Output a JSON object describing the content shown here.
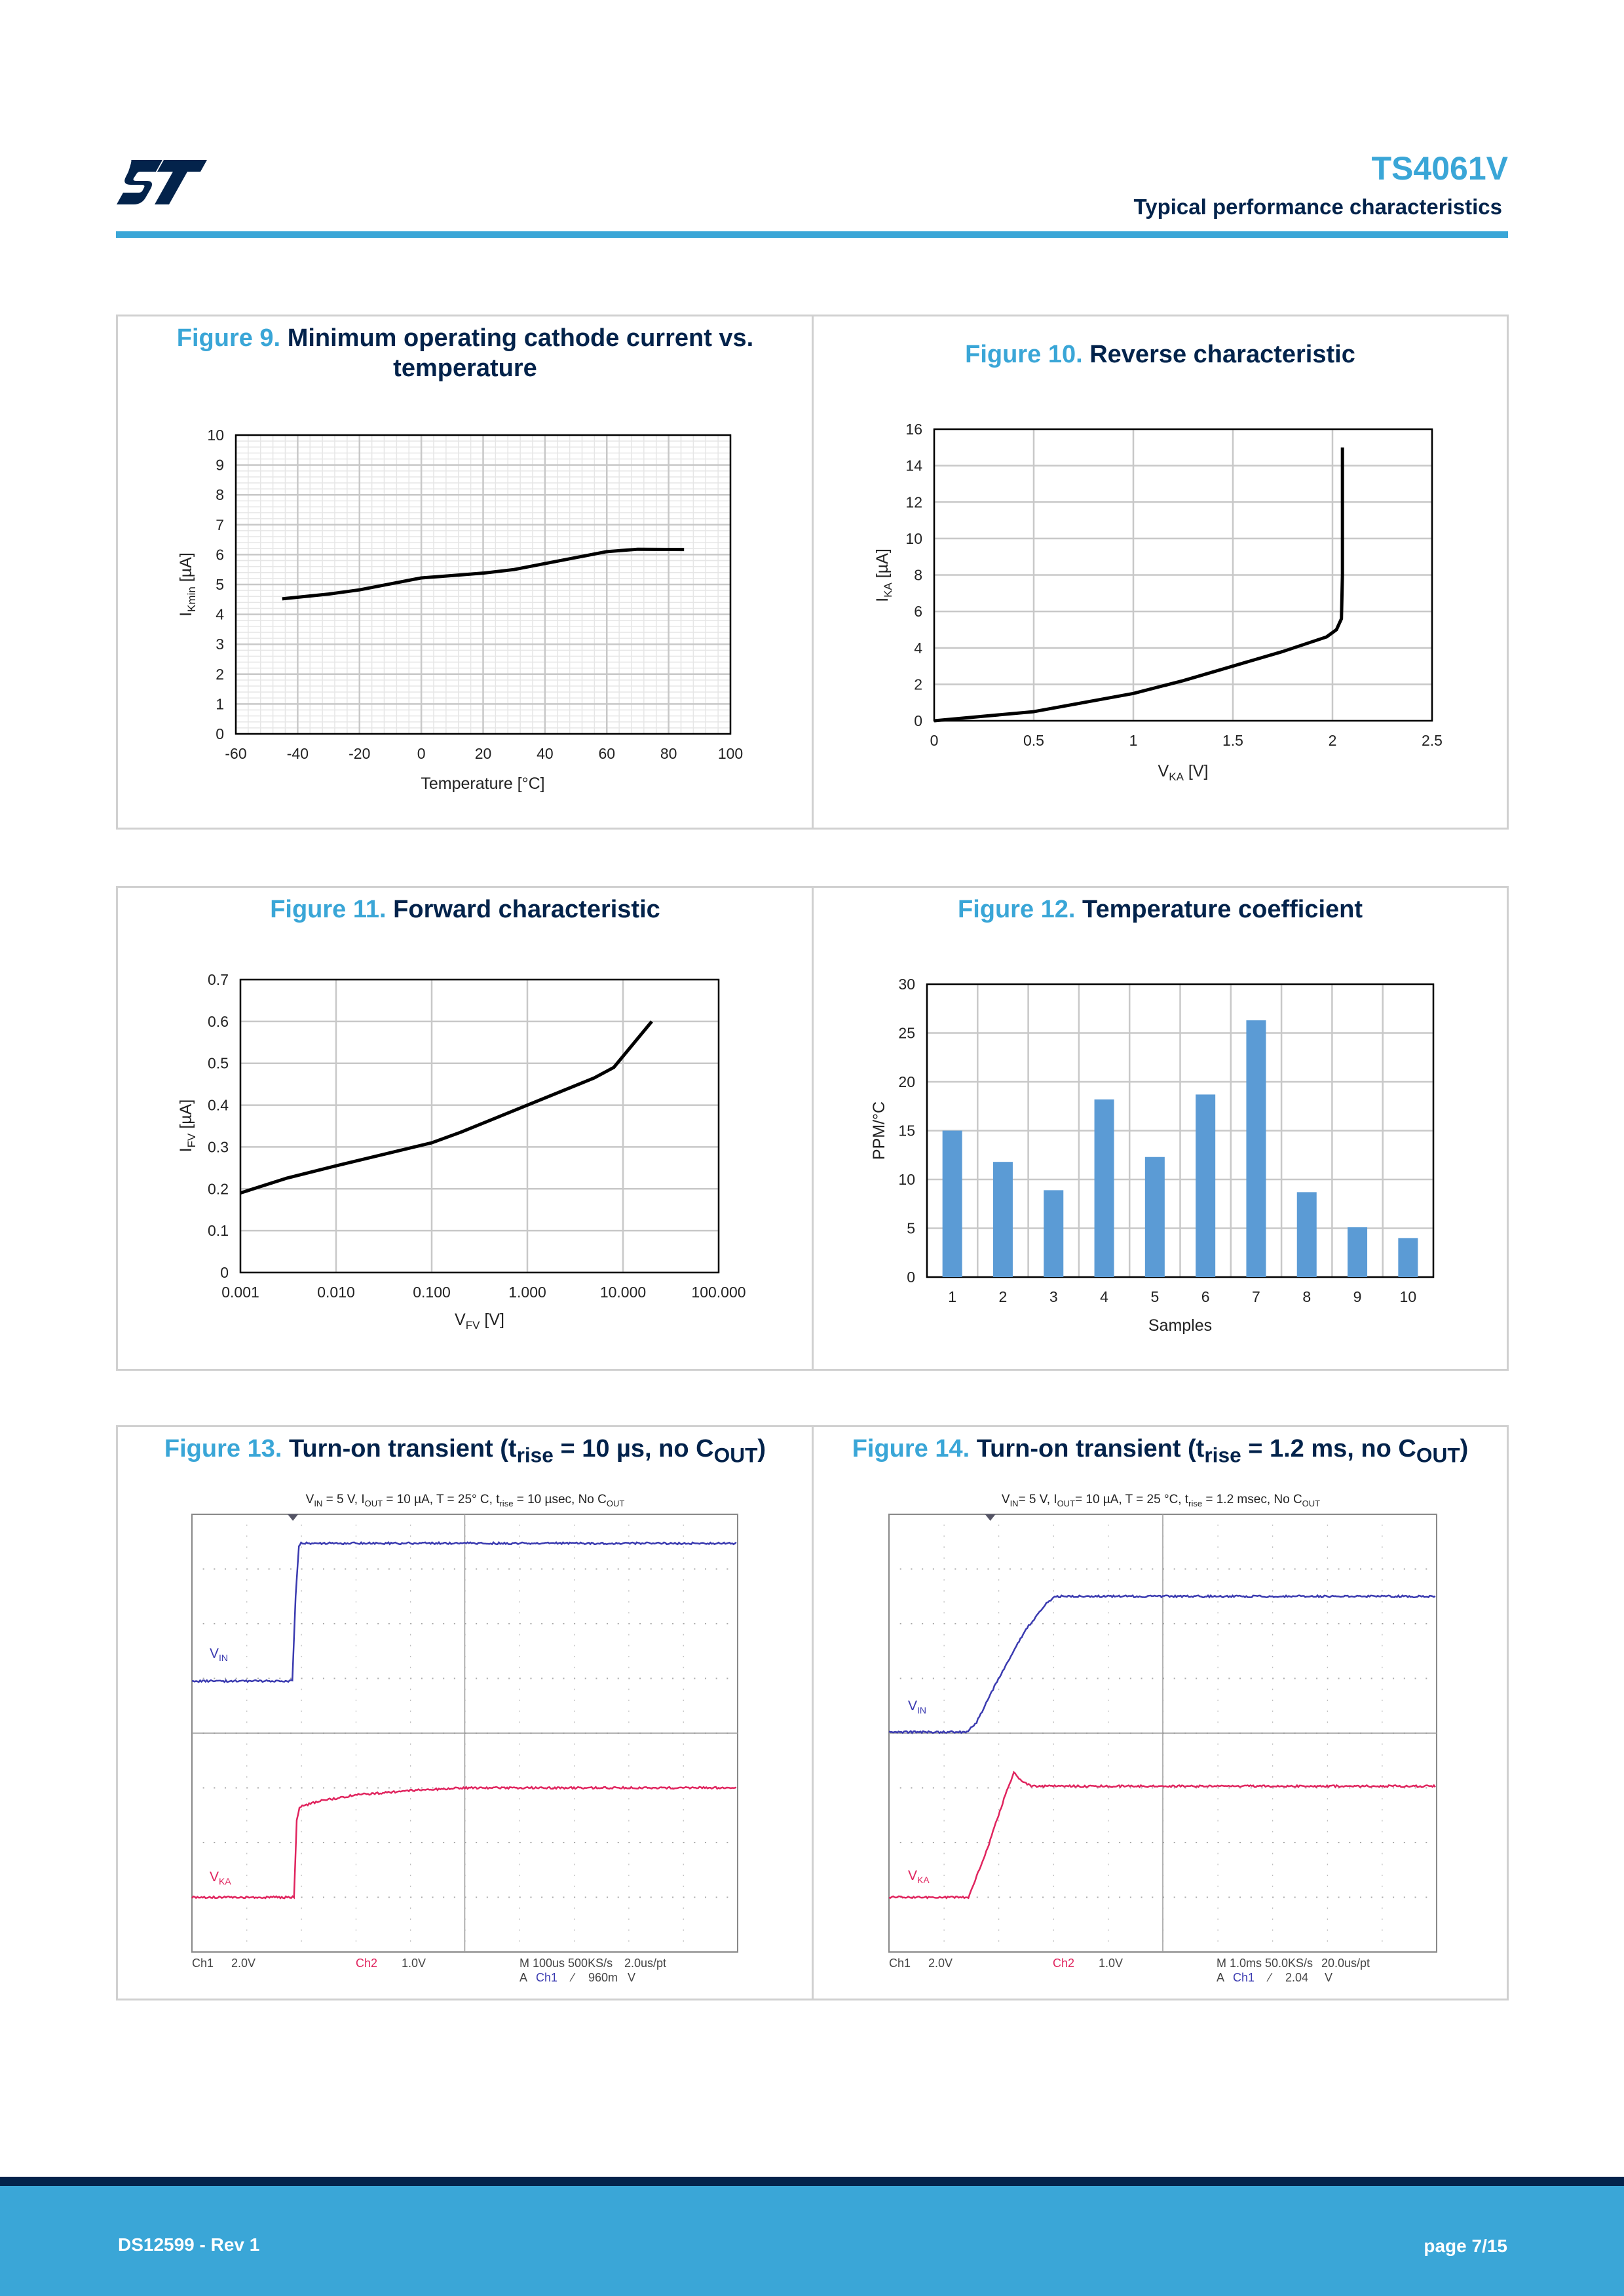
{
  "header": {
    "title": "TS4061V",
    "subtitle": "Typical performance characteristics",
    "logo": "ST"
  },
  "footer": {
    "doc_id": "DS12599 - Rev 1",
    "page": "page 7/15"
  },
  "figures": [
    {
      "num": "Figure 9.",
      "title": "Minimum operating cathode current vs.",
      "title2": "temperature"
    },
    {
      "num": "Figure 10.",
      "title": "Reverse characteristic"
    },
    {
      "num": "Figure 11.",
      "title": "Forward characteristic"
    },
    {
      "num": "Figure 12.",
      "title": "Temperature coefficient"
    },
    {
      "num": "Figure 13.",
      "title_parts": [
        {
          "t": "Turn-on transient (t"
        },
        {
          "t": "rise",
          "sub": true
        },
        {
          "t": " = 10 µs, no C"
        },
        {
          "t": "OUT",
          "sub": true
        },
        {
          "t": ")"
        }
      ]
    },
    {
      "num": "Figure 14.",
      "title_parts": [
        {
          "t": "Turn-on transient (t"
        },
        {
          "t": "rise",
          "sub": true
        },
        {
          "t": " = 1.2 ms, no C"
        },
        {
          "t": "OUT",
          "sub": true
        },
        {
          "t": ")"
        }
      ]
    }
  ],
  "chart_data": [
    {
      "type": "line",
      "title": "Minimum operating cathode current vs. temperature",
      "xlabel": "Temperature [°C]",
      "ylabel": {
        "main": "I",
        "sub": "Kmin",
        "tail": " [µA]"
      },
      "xlim": [
        -60,
        100
      ],
      "ylim": [
        0,
        10
      ],
      "xticks": [
        -60,
        -40,
        -20,
        0,
        20,
        40,
        60,
        80,
        100
      ],
      "yticks": [
        0,
        1,
        2,
        3,
        4,
        5,
        6,
        7,
        8,
        9,
        10
      ],
      "grid": true,
      "x": [
        -45,
        -30,
        -20,
        -10,
        0,
        10,
        20,
        30,
        40,
        50,
        60,
        70,
        85
      ],
      "y": [
        4.52,
        4.68,
        4.82,
        5.02,
        5.22,
        5.3,
        5.38,
        5.5,
        5.7,
        5.9,
        6.1,
        6.18,
        6.17
      ]
    },
    {
      "type": "line",
      "title": "Reverse characteristic",
      "xlabel": {
        "main": "V",
        "sub": "KA",
        "tail": "  [V]"
      },
      "ylabel": {
        "main": "I",
        "sub": "KA",
        "tail": " [µA]"
      },
      "xlim": [
        0,
        2.5
      ],
      "ylim": [
        0,
        16
      ],
      "xticks": [
        0,
        0.5,
        1,
        1.5,
        2,
        2.5
      ],
      "yticks": [
        0,
        2,
        4,
        6,
        8,
        10,
        12,
        14,
        16
      ],
      "grid": true,
      "x": [
        0,
        0.25,
        0.5,
        0.75,
        1,
        1.25,
        1.5,
        1.75,
        1.97,
        2.02,
        2.045,
        2.05,
        2.05
      ],
      "y": [
        0,
        0.25,
        0.5,
        1,
        1.5,
        2.2,
        3,
        3.8,
        4.6,
        5.0,
        5.6,
        8,
        15
      ]
    },
    {
      "type": "line",
      "title": "Forward characteristic",
      "xlabel": {
        "main": "V",
        "sub": "FV",
        "tail": " [V]"
      },
      "ylabel": {
        "main": "I",
        "sub": "FV",
        "tail": " [µA]"
      },
      "xscale": "log",
      "xlim": [
        0.001,
        100
      ],
      "ylim": [
        0,
        0.7
      ],
      "xticks": [
        "0.001",
        "0.010",
        "0.100",
        "1.000",
        "10.000",
        "100.000"
      ],
      "yticks": [
        0,
        0.1,
        0.2,
        0.3,
        0.4,
        0.5,
        0.6,
        0.7
      ],
      "grid": true,
      "x": [
        0.001,
        0.003,
        0.01,
        0.1,
        0.2,
        1,
        5,
        8,
        20
      ],
      "y": [
        0.19,
        0.225,
        0.255,
        0.31,
        0.335,
        0.4,
        0.465,
        0.49,
        0.6
      ]
    },
    {
      "type": "bar",
      "title": "Temperature coefficient",
      "xlabel": "Samples",
      "ylabel": "PPM/°C",
      "ylim": [
        0,
        30
      ],
      "yticks": [
        0,
        5,
        10,
        15,
        20,
        25,
        30
      ],
      "grid": true,
      "categories": [
        "1",
        "2",
        "3",
        "4",
        "5",
        "6",
        "7",
        "8",
        "9",
        "10"
      ],
      "values": [
        15,
        11.8,
        8.9,
        18.2,
        12.3,
        18.7,
        26.3,
        8.7,
        5.1,
        4.0
      ],
      "color": "#5b9bd5"
    },
    {
      "type": "line",
      "title": "Oscilloscope turn-on transient 10 µs",
      "units": "divisions",
      "caption": [
        {
          "t": "V"
        },
        {
          "t": "IN",
          "sub": true
        },
        {
          "t": " = 5 V, I"
        },
        {
          "t": "OUT",
          "sub": true
        },
        {
          "t": " = 10 µA, T = 25° C, t"
        },
        {
          "t": "rise",
          "sub": true
        },
        {
          "t": " = 10 µsec, No C"
        },
        {
          "t": "OUT",
          "sub": true
        }
      ],
      "series": [
        {
          "name": "VIN",
          "sub": "IN",
          "color": "#3a3ab0",
          "x": [
            0,
            1.84,
            1.9,
            1.96,
            2.0,
            10
          ],
          "y": [
            3.05,
            3.05,
            1.5,
            0.6,
            0.53,
            0.53
          ]
        },
        {
          "name": "VKA",
          "sub": "KA",
          "color": "#e0245e",
          "x": [
            0,
            1.87,
            1.92,
            1.97,
            2.3,
            3,
            4,
            5,
            10
          ],
          "y": [
            7.0,
            7.0,
            5.6,
            5.35,
            5.25,
            5.13,
            5.05,
            5.0,
            5.0
          ]
        }
      ],
      "footer": {
        "ch1": "Ch1",
        "ch1_scale": "2.0V",
        "ch2": "Ch2",
        "ch2_scale": "1.0V",
        "timebase": "M 100us 500KS/s",
        "sample": "2.0us/pt",
        "trig_a": "A",
        "trig_ch": "Ch1",
        "trig_level": "960m",
        "trig_unit": "V"
      }
    },
    {
      "type": "line",
      "title": "Oscilloscope turn-on transient 1.2 ms",
      "units": "divisions",
      "caption": [
        {
          "t": "V"
        },
        {
          "t": "IN",
          "sub": true
        },
        {
          "t": "= 5 V, I"
        },
        {
          "t": "OUT",
          "sub": true
        },
        {
          "t": "= 10 µA, T = 25 °C, t"
        },
        {
          "t": "rise",
          "sub": true
        },
        {
          "t": " = 1.2 msec, No C"
        },
        {
          "t": "OUT",
          "sub": true
        }
      ],
      "series": [
        {
          "name": "VIN",
          "sub": "IN",
          "color": "#3a3ab0",
          "x": [
            0,
            1.42,
            1.6,
            2.0,
            2.5,
            2.9,
            3.05,
            10
          ],
          "y": [
            3.98,
            3.98,
            3.8,
            3.0,
            2.1,
            1.6,
            1.5,
            1.5
          ]
        },
        {
          "name": "VKA",
          "sub": "KA",
          "color": "#e0245e",
          "x": [
            0,
            1.45,
            1.8,
            2.1,
            2.28,
            2.4,
            2.6,
            10
          ],
          "y": [
            7.0,
            7.0,
            6.1,
            5.2,
            4.72,
            4.85,
            4.97,
            4.97
          ]
        }
      ],
      "footer": {
        "ch1": "Ch1",
        "ch1_scale": "2.0V",
        "ch2": "Ch2",
        "ch2_scale": "1.0V",
        "timebase": "M 1.0ms 50.0KS/s",
        "sample": "20.0us/pt",
        "trig_a": "A",
        "trig_ch": "Ch1",
        "trig_level": "2.04",
        "trig_unit": "V"
      }
    }
  ]
}
